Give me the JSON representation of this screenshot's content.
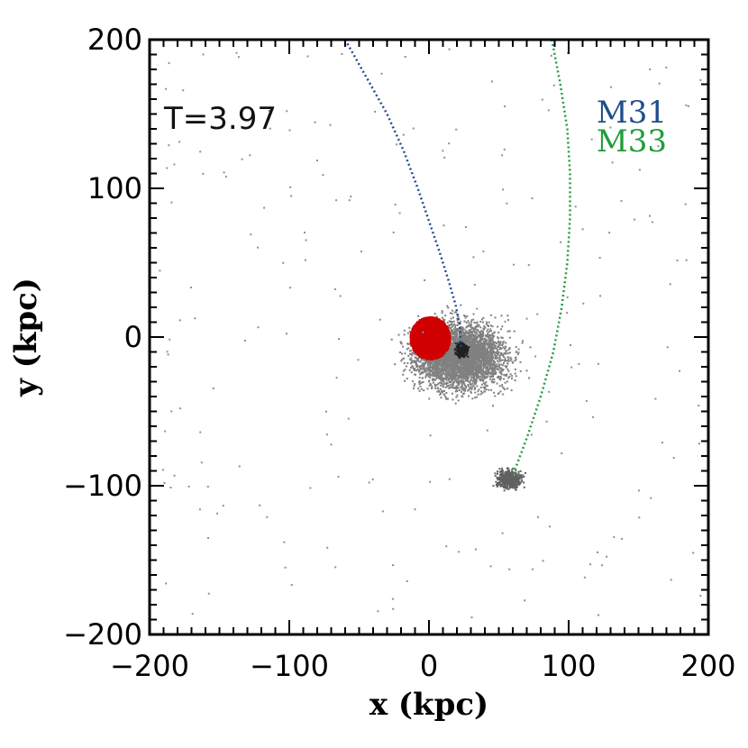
{
  "chart_data": {
    "type": "scatter",
    "title": "",
    "xlabel": "x (kpc)",
    "ylabel": "y (kpc)",
    "xlim": [
      -200,
      200
    ],
    "ylim": [
      -200,
      200
    ],
    "xticks": [
      -200,
      -100,
      0,
      100,
      200
    ],
    "yticks": [
      -200,
      -100,
      0,
      100,
      200
    ],
    "xtick_labels": [
      "−200",
      "−100",
      "0",
      "100",
      "200"
    ],
    "ytick_labels": [
      "−200",
      "−100",
      "0",
      "100",
      "200"
    ],
    "annotation": "T=3.97",
    "legend_position": "top-right",
    "series": [
      {
        "name": "M31",
        "kind": "trajectory",
        "color": "#1f4e8c",
        "points": [
          [
            -60,
            200
          ],
          [
            -45,
            175
          ],
          [
            -30,
            150
          ],
          [
            -18,
            125
          ],
          [
            -8,
            100
          ],
          [
            0,
            78
          ],
          [
            8,
            56
          ],
          [
            14,
            38
          ],
          [
            19,
            22
          ],
          [
            22,
            8
          ],
          [
            23,
            -8
          ]
        ]
      },
      {
        "name": "M33",
        "kind": "trajectory",
        "color": "#1e9e3a",
        "points": [
          [
            88,
            200
          ],
          [
            94,
            170
          ],
          [
            99,
            140
          ],
          [
            101,
            110
          ],
          [
            101,
            80
          ],
          [
            99,
            50
          ],
          [
            95,
            20
          ],
          [
            89,
            -10
          ],
          [
            80,
            -40
          ],
          [
            70,
            -68
          ],
          [
            60,
            -93
          ]
        ]
      }
    ],
    "particle_clouds": [
      {
        "name": "merger remnant halo",
        "color": "#808080",
        "center": [
          22,
          -12
        ],
        "spread": [
          22,
          15
        ]
      },
      {
        "name": "M31 core",
        "color": "#202020",
        "center": [
          23,
          -8
        ],
        "spread": [
          3,
          3
        ]
      },
      {
        "name": "M33 satellite",
        "color": "#606060",
        "center": [
          57,
          -95
        ],
        "spread": [
          6,
          4
        ]
      },
      {
        "name": "Milky Way disk",
        "color": "#d10000",
        "center": [
          0,
          0
        ],
        "spread": [
          14,
          14
        ]
      }
    ]
  }
}
